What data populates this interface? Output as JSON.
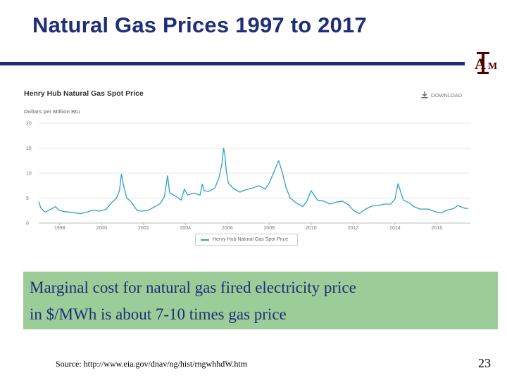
{
  "slide": {
    "title": "Natural Gas Prices 1997 to 2017",
    "note_line1": "Marginal cost for natural gas fired electricity price",
    "note_line2": "in $/MWh is about 7-10 times gas price",
    "source": "Source: http://www.eia.gov/dnav/ng/hist/rngwhhdW.htm",
    "page_number": "23",
    "logo_text": "ATM",
    "colors": {
      "title": "#1f2e78",
      "note_bg": "#9ccd98",
      "logo": "#500000"
    }
  },
  "chart_data": {
    "type": "line",
    "title": "Henry Hub Natural Gas Spot Price",
    "ylabel": "Dollars per Million Btu",
    "download_label": "DOWNLOAD",
    "x_tick_labels": [
      "1998",
      "2000",
      "2002",
      "2004",
      "2006",
      "2008",
      "2010",
      "2012",
      "2014",
      "2016"
    ],
    "y_tick_labels": [
      "0",
      "5",
      "10",
      "15",
      "20"
    ],
    "ylim": [
      0,
      20
    ],
    "xlim": [
      1997.0,
      2017.6
    ],
    "grid": true,
    "legend_position": "bottom-center",
    "series": [
      {
        "name": "Henry Hub Natural Gas Spot Price",
        "color": "#2c9fcf",
        "x": [
          1997.0,
          1997.1,
          1997.3,
          1997.6,
          1997.8,
          1997.95,
          1998.2,
          1998.5,
          1998.8,
          1999.0,
          1999.3,
          1999.6,
          1999.9,
          2000.2,
          2000.5,
          2000.7,
          2000.85,
          2000.95,
          2001.05,
          2001.2,
          2001.4,
          2001.7,
          2001.9,
          2002.2,
          2002.5,
          2002.8,
          2003.0,
          2003.15,
          2003.25,
          2003.5,
          2003.8,
          2003.95,
          2004.1,
          2004.4,
          2004.7,
          2004.8,
          2004.9,
          2005.1,
          2005.4,
          2005.6,
          2005.75,
          2005.82,
          2005.88,
          2005.95,
          2006.05,
          2006.3,
          2006.6,
          2006.9,
          2007.2,
          2007.5,
          2007.8,
          2008.0,
          2008.2,
          2008.45,
          2008.6,
          2008.8,
          2009.0,
          2009.3,
          2009.6,
          2009.8,
          2010.0,
          2010.3,
          2010.6,
          2010.9,
          2011.2,
          2011.5,
          2011.8,
          2012.0,
          2012.3,
          2012.6,
          2012.9,
          2013.2,
          2013.5,
          2013.8,
          2014.0,
          2014.15,
          2014.4,
          2014.7,
          2014.9,
          2015.2,
          2015.6,
          2015.9,
          2016.2,
          2016.5,
          2016.8,
          2017.0,
          2017.3,
          2017.5
        ],
        "y": [
          4.3,
          3.0,
          2.2,
          2.8,
          3.3,
          2.6,
          2.3,
          2.2,
          2.0,
          1.9,
          2.2,
          2.6,
          2.4,
          2.7,
          4.2,
          4.9,
          6.5,
          9.8,
          7.5,
          5.0,
          4.3,
          2.5,
          2.4,
          2.5,
          3.2,
          3.9,
          5.3,
          9.5,
          6.0,
          5.5,
          4.6,
          6.8,
          5.6,
          6.0,
          5.6,
          7.8,
          6.5,
          6.3,
          7.0,
          9.0,
          12.0,
          15.0,
          13.8,
          10.5,
          8.0,
          6.9,
          6.2,
          6.7,
          7.0,
          7.5,
          6.8,
          8.0,
          10.0,
          12.5,
          10.5,
          7.2,
          5.0,
          4.0,
          3.3,
          4.4,
          6.5,
          4.6,
          4.4,
          3.8,
          4.2,
          4.4,
          3.6,
          2.6,
          1.9,
          2.8,
          3.4,
          3.5,
          3.8,
          3.8,
          4.8,
          7.9,
          4.6,
          4.0,
          3.3,
          2.8,
          2.8,
          2.3,
          2.0,
          2.6,
          2.9,
          3.5,
          3.0,
          2.9
        ]
      }
    ]
  }
}
